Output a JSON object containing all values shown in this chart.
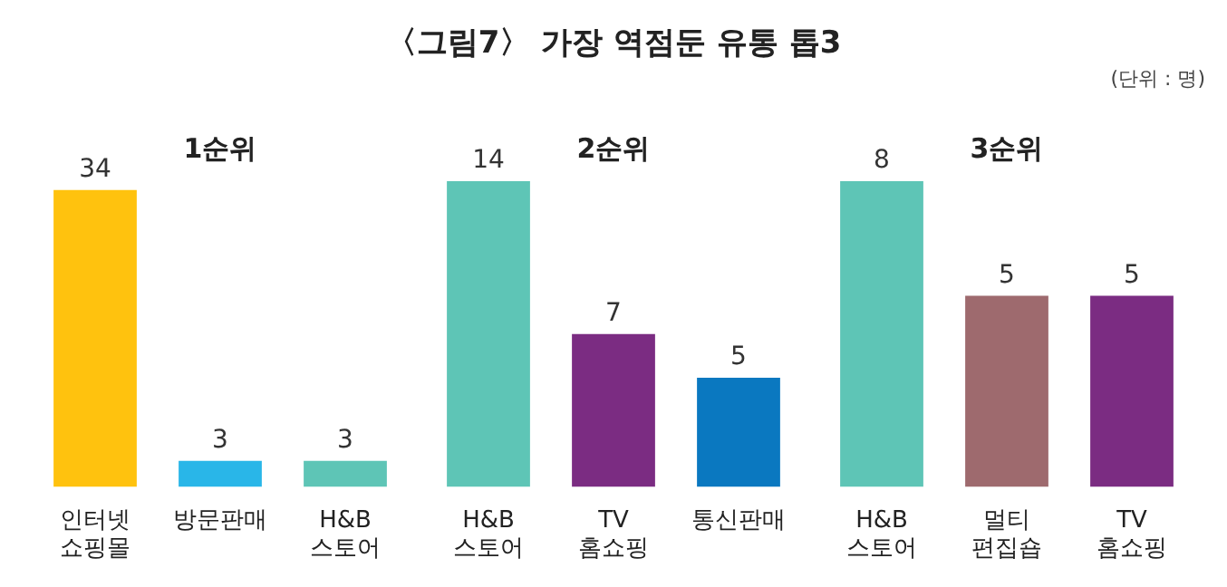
{
  "chart_data": [
    {
      "type": "other",
      "title": "〈그림7〉 가장 역점둔 유통 톱3",
      "annotations": [
        "(단위 : 명)"
      ]
    },
    {
      "type": "bar",
      "title": "1순위",
      "categories": [
        "인터넷 쇼핑몰",
        "방문판매",
        "H&B 스토어"
      ],
      "values": [
        34,
        3,
        3
      ],
      "colors": [
        "#ffc20e",
        "#29b6e8",
        "#5ec5b6"
      ],
      "data_labels": true
    },
    {
      "type": "bar",
      "title": "2순위",
      "categories": [
        "H&B 스토어",
        "TV 홈쇼핑",
        "통신판매"
      ],
      "values": [
        14,
        7,
        5
      ],
      "colors": [
        "#5ec5b6",
        "#7b2c82",
        "#0a78c0"
      ],
      "data_labels": true
    },
    {
      "type": "bar",
      "title": "3순위",
      "categories": [
        "H&B 스토어",
        "멀티 편집숍",
        "TV 홈쇼핑"
      ],
      "values": [
        8,
        5,
        5
      ],
      "colors": [
        "#5ec5b6",
        "#9e6a6e",
        "#7b2c82"
      ],
      "data_labels": true
    }
  ]
}
